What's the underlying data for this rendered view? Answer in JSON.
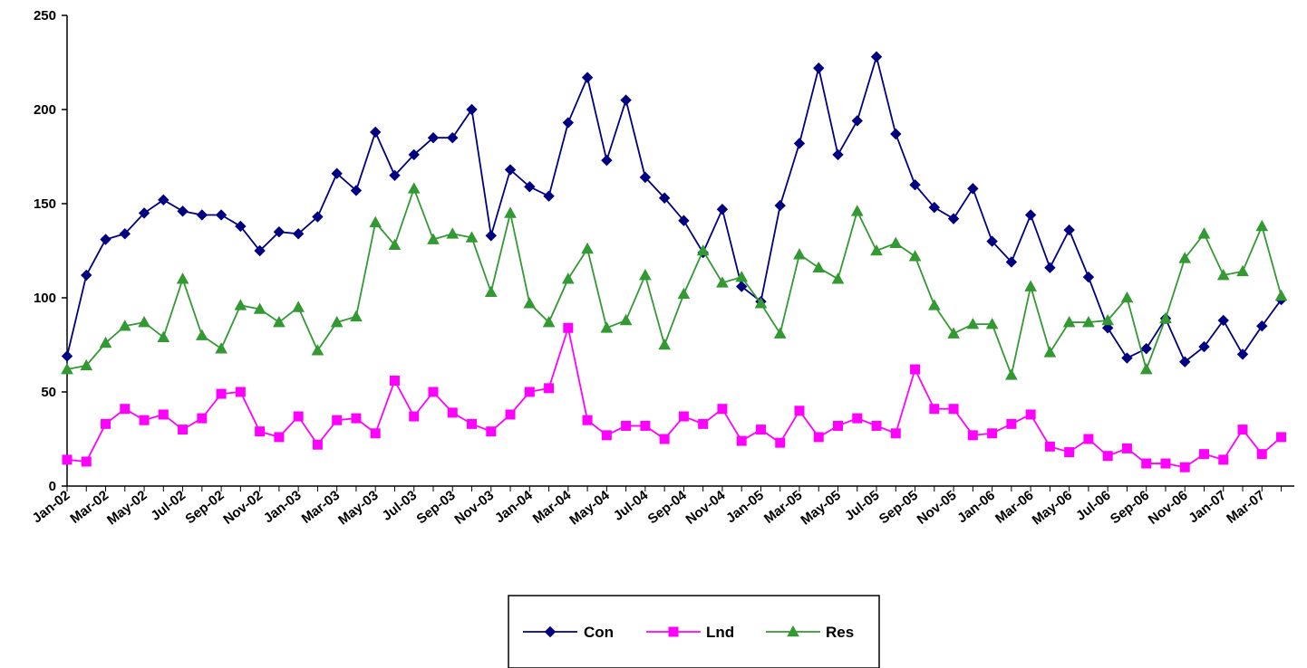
{
  "chart_data": {
    "type": "line",
    "title": "",
    "xlabel": "",
    "ylabel": "",
    "ylim": [
      0,
      250
    ],
    "yticks": [
      0,
      50,
      100,
      150,
      200,
      250
    ],
    "grid": false,
    "legend_position": "bottom-center",
    "x": [
      "Jan-02",
      "Feb-02",
      "Mar-02",
      "Apr-02",
      "May-02",
      "Jun-02",
      "Jul-02",
      "Aug-02",
      "Sep-02",
      "Oct-02",
      "Nov-02",
      "Dec-02",
      "Jan-03",
      "Feb-03",
      "Mar-03",
      "Apr-03",
      "May-03",
      "Jun-03",
      "Jul-03",
      "Aug-03",
      "Sep-03",
      "Oct-03",
      "Nov-03",
      "Dec-03",
      "Jan-04",
      "Feb-04",
      "Mar-04",
      "Apr-04",
      "May-04",
      "Jun-04",
      "Jul-04",
      "Aug-04",
      "Sep-04",
      "Oct-04",
      "Nov-04",
      "Dec-04",
      "Jan-05",
      "Feb-05",
      "Mar-05",
      "Apr-05",
      "May-05",
      "Jun-05",
      "Jul-05",
      "Aug-05",
      "Sep-05",
      "Oct-05",
      "Nov-05",
      "Dec-05",
      "Jan-06",
      "Feb-06",
      "Mar-06",
      "Apr-06",
      "May-06",
      "Jun-06",
      "Jul-06",
      "Aug-06",
      "Sep-06",
      "Oct-06",
      "Nov-06",
      "Dec-06",
      "Jan-07",
      "Feb-07",
      "Mar-07",
      "Apr-07"
    ],
    "x_tick_labels": [
      "Jan-02",
      "Mar-02",
      "May-02",
      "Jul-02",
      "Sep-02",
      "Nov-02",
      "Jan-03",
      "Mar-03",
      "May-03",
      "Jul-03",
      "Sep-03",
      "Nov-03",
      "Jan-04",
      "Mar-04",
      "May-04",
      "Jul-04",
      "Sep-04",
      "Nov-04",
      "Jan-05",
      "Mar-05",
      "May-05",
      "Jul-05",
      "Sep-05",
      "Nov-05",
      "Jan-06",
      "Mar-06",
      "May-06",
      "Jul-06",
      "Sep-06",
      "Nov-06",
      "Jan-07",
      "Mar-07"
    ],
    "series": [
      {
        "name": "Con",
        "color": "#000080",
        "marker": "diamond",
        "values": [
          69,
          112,
          131,
          134,
          145,
          152,
          146,
          144,
          144,
          138,
          125,
          135,
          134,
          143,
          166,
          157,
          188,
          165,
          176,
          185,
          185,
          200,
          133,
          168,
          159,
          154,
          193,
          217,
          173,
          205,
          164,
          153,
          141,
          124,
          147,
          106,
          98,
          149,
          182,
          222,
          176,
          194,
          228,
          187,
          160,
          148,
          142,
          158,
          130,
          119,
          144,
          116,
          136,
          111,
          84,
          68,
          73,
          89,
          66,
          74,
          88,
          70,
          85,
          99
        ]
      },
      {
        "name": "Lnd",
        "color": "#ff00ff",
        "marker": "square",
        "values": [
          14,
          13,
          33,
          41,
          35,
          38,
          30,
          36,
          49,
          50,
          29,
          26,
          37,
          22,
          35,
          36,
          28,
          56,
          37,
          50,
          39,
          33,
          29,
          38,
          50,
          52,
          84,
          35,
          27,
          32,
          32,
          25,
          37,
          33,
          41,
          24,
          30,
          23,
          40,
          26,
          32,
          36,
          32,
          28,
          62,
          41,
          41,
          27,
          28,
          33,
          38,
          21,
          18,
          25,
          16,
          20,
          12,
          12,
          10,
          17,
          14,
          30,
          17,
          26
        ]
      },
      {
        "name": "Res",
        "color": "#339933",
        "marker": "triangle",
        "values": [
          62,
          64,
          76,
          85,
          87,
          79,
          110,
          80,
          73,
          96,
          94,
          87,
          95,
          72,
          87,
          90,
          140,
          128,
          158,
          131,
          134,
          132,
          103,
          145,
          97,
          87,
          110,
          126,
          84,
          88,
          112,
          75,
          102,
          125,
          108,
          111,
          97,
          81,
          123,
          116,
          110,
          146,
          125,
          129,
          122,
          96,
          81,
          86,
          86,
          59,
          106,
          71,
          87,
          87,
          88,
          100,
          62,
          89,
          121,
          134,
          112,
          114,
          138,
          101
        ]
      }
    ]
  }
}
